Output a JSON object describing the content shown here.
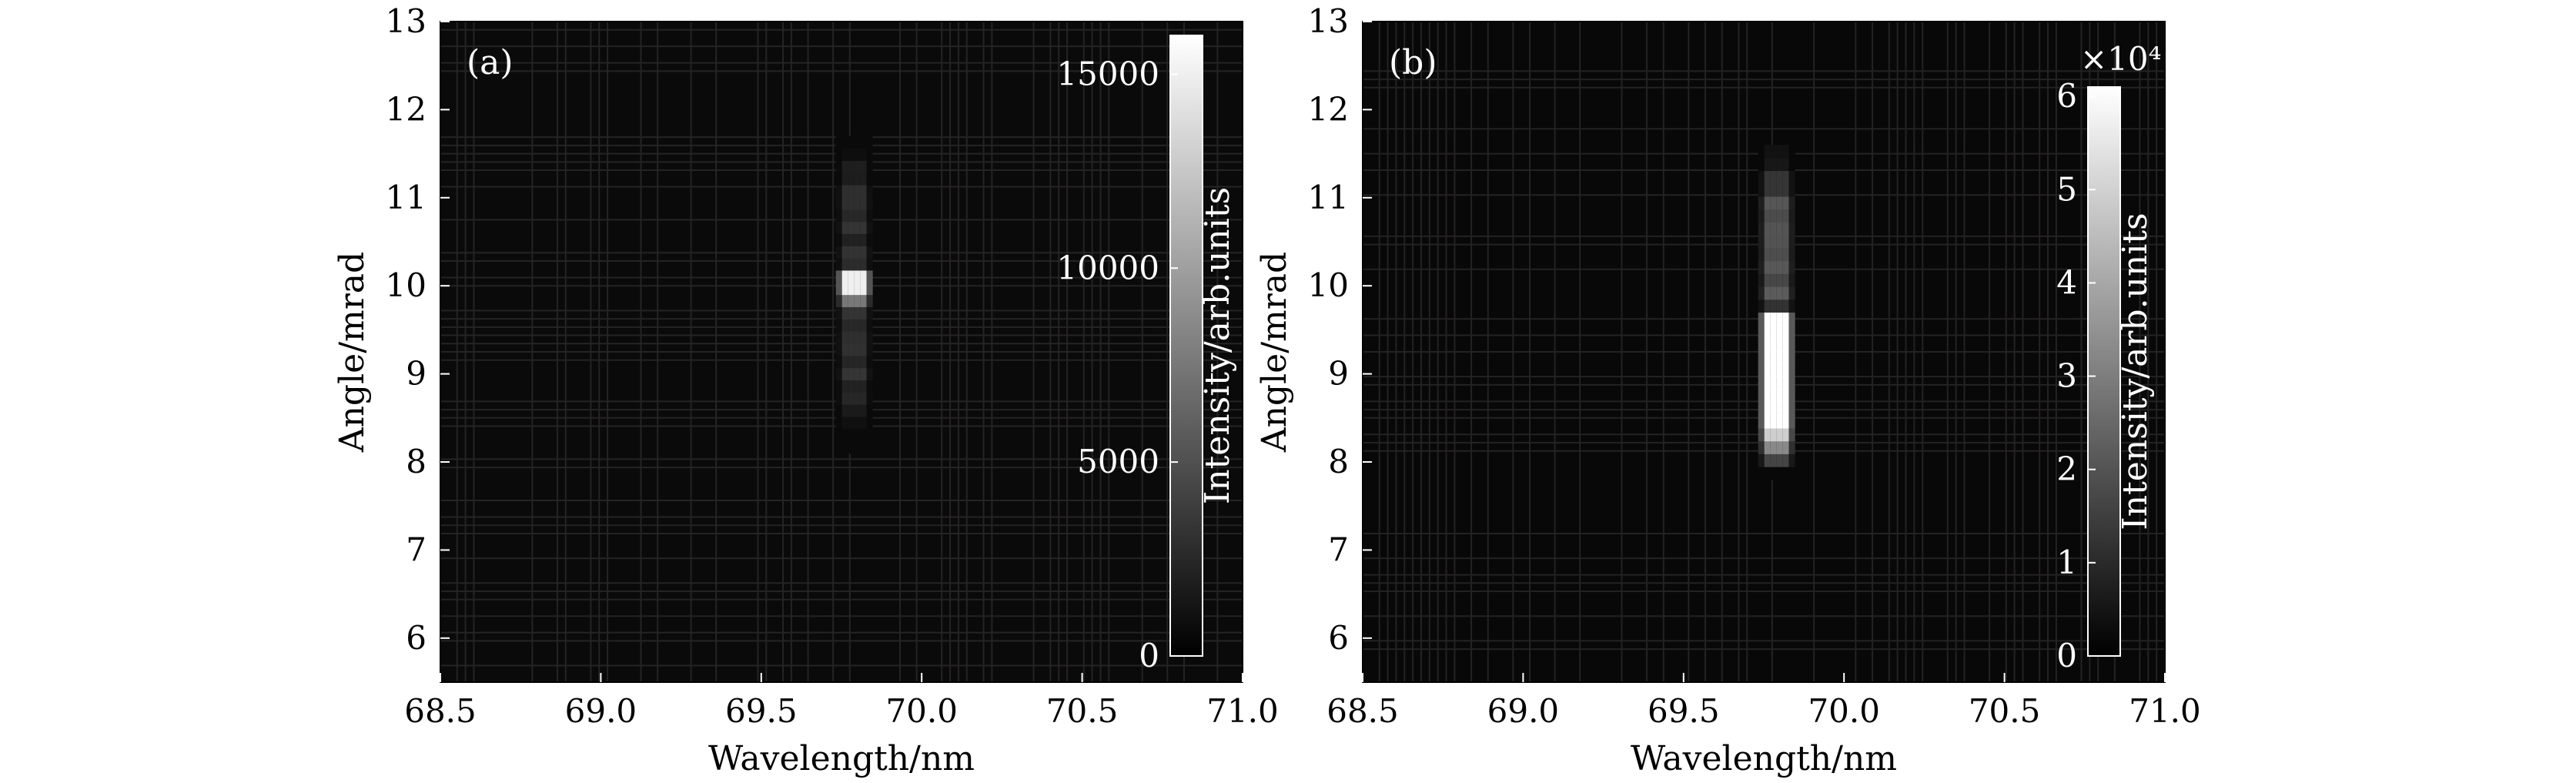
{
  "chart_data": [
    {
      "type": "heatmap",
      "panel_label": "(a)",
      "xlabel": "Wavelength/nm",
      "ylabel": "Angle/mrad",
      "xlim": [
        68.5,
        71.0
      ],
      "ylim": [
        5.5,
        13.0
      ],
      "x_tick_labels": [
        "68.5",
        "69.0",
        "69.5",
        "70.0",
        "70.5",
        "71.0"
      ],
      "x_ticks": [
        68.5,
        69.0,
        69.5,
        70.0,
        70.5,
        71.0
      ],
      "y_tick_labels": [
        "6",
        "7",
        "8",
        "9",
        "10",
        "11",
        "12",
        "13"
      ],
      "y_ticks": [
        6,
        7,
        8,
        9,
        10,
        11,
        12,
        13
      ],
      "colorbar": {
        "label": "Intensity/arb.units",
        "range": [
          0,
          16000
        ],
        "tick_labels": [
          "0",
          "5000",
          "10000",
          "15000"
        ],
        "ticks": [
          0,
          5000,
          10000,
          15000
        ],
        "multiplier_label": ""
      },
      "colormap": "gray",
      "background_intensity": 600,
      "features": [
        {
          "wavelength": 69.79,
          "angle_from": 8.1,
          "angle_to": 11.7,
          "peak_angle": 9.95,
          "peak_intensity": 15000,
          "plateau_intensity": 3000
        }
      ]
    },
    {
      "type": "heatmap",
      "panel_label": "(b)",
      "xlabel": "Wavelength/nm",
      "ylabel": "Angle/mrad",
      "xlim": [
        68.5,
        71.0
      ],
      "ylim": [
        5.5,
        13.0
      ],
      "x_tick_labels": [
        "68.5",
        "69.0",
        "69.5",
        "70.0",
        "70.5",
        "71.0"
      ],
      "x_ticks": [
        68.5,
        69.0,
        69.5,
        70.0,
        70.5,
        71.0
      ],
      "y_tick_labels": [
        "6",
        "7",
        "8",
        "9",
        "10",
        "11",
        "12",
        "13"
      ],
      "y_ticks": [
        6,
        7,
        8,
        9,
        10,
        11,
        12,
        13
      ],
      "colorbar": {
        "label": "Intensity/arb.units",
        "range": [
          0,
          61000
        ],
        "tick_labels": [
          "0",
          "1",
          "2",
          "3",
          "4",
          "5",
          "6"
        ],
        "ticks": [
          0,
          10000,
          20000,
          30000,
          40000,
          50000,
          60000
        ],
        "multiplier_label": "×10⁴"
      },
      "colormap": "gray",
      "background_intensity": 2000,
      "features": [
        {
          "wavelength": 69.79,
          "angle_from": 7.8,
          "angle_to": 11.6,
          "peak_angle": 9.0,
          "peak_intensity": 61000,
          "plateau_intensity": 20000
        }
      ]
    }
  ]
}
